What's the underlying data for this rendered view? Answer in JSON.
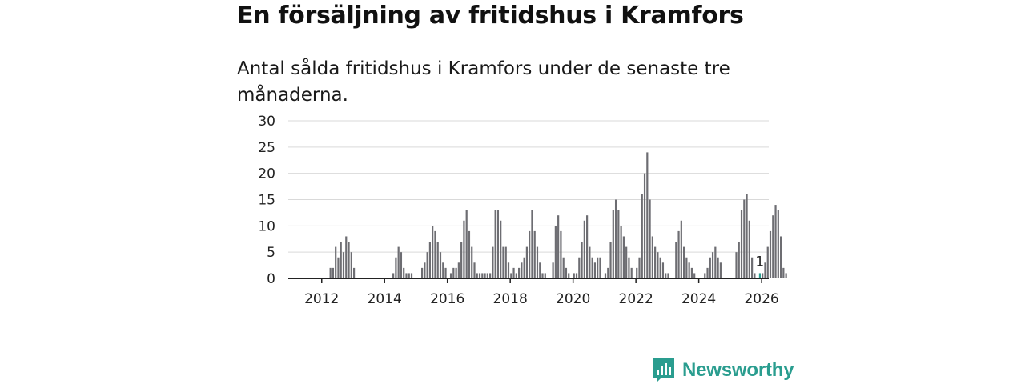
{
  "title": "En försäljning av fritidshus i Kramfors",
  "subtitle": "Antal sålda fritidshus i Kramfors under de senaste tre månaderna.",
  "brand": {
    "name": "Newsworthy",
    "color": "#2a9d8f"
  },
  "colors": {
    "bar": "#6d6d72",
    "highlight": "#2a9d8f",
    "grid": "#d9d9d9",
    "axis": "#222222"
  },
  "chart_data": {
    "type": "bar",
    "title": "En försäljning av fritidshus i Kramfors",
    "xlabel": "",
    "ylabel": "",
    "ylim": [
      0,
      30
    ],
    "yticks": [
      0,
      5,
      10,
      15,
      20,
      25,
      30
    ],
    "xticks": [
      "2012",
      "2014",
      "2016",
      "2018",
      "2020",
      "2022",
      "2024",
      "2026"
    ],
    "x_start": "2011-01",
    "x_step": "month",
    "annotation": {
      "label": "1",
      "index": 179
    },
    "values": [
      0,
      0,
      0,
      0,
      0,
      0,
      0,
      0,
      0,
      0,
      0,
      0,
      0,
      0,
      0,
      2,
      2,
      6,
      4,
      7,
      5,
      8,
      7,
      5,
      2,
      0,
      0,
      0,
      0,
      0,
      0,
      0,
      0,
      0,
      0,
      0,
      0,
      0,
      0,
      1,
      4,
      6,
      5,
      2,
      1,
      1,
      1,
      0,
      0,
      0,
      2,
      3,
      5,
      7,
      10,
      9,
      7,
      5,
      3,
      2,
      0,
      1,
      2,
      2,
      3,
      7,
      11,
      13,
      9,
      6,
      3,
      1,
      1,
      1,
      1,
      1,
      1,
      6,
      13,
      13,
      11,
      6,
      6,
      3,
      1,
      2,
      1,
      2,
      3,
      4,
      6,
      9,
      13,
      9,
      6,
      3,
      1,
      1,
      0,
      0,
      3,
      10,
      12,
      9,
      4,
      2,
      1,
      0,
      1,
      1,
      4,
      7,
      11,
      12,
      6,
      4,
      3,
      4,
      4,
      0,
      1,
      2,
      7,
      13,
      15,
      13,
      10,
      8,
      6,
      4,
      2,
      0,
      2,
      4,
      16,
      20,
      24,
      15,
      8,
      6,
      5,
      4,
      3,
      1,
      1,
      0,
      0,
      7,
      9,
      11,
      6,
      4,
      3,
      2,
      1,
      0,
      0,
      0,
      1,
      2,
      4,
      5,
      6,
      4,
      3,
      0,
      0,
      0,
      0,
      0,
      5,
      7,
      13,
      15,
      16,
      11,
      4,
      1,
      0,
      1,
      1,
      3,
      6,
      9,
      12,
      14,
      13,
      8,
      2,
      1
    ]
  }
}
